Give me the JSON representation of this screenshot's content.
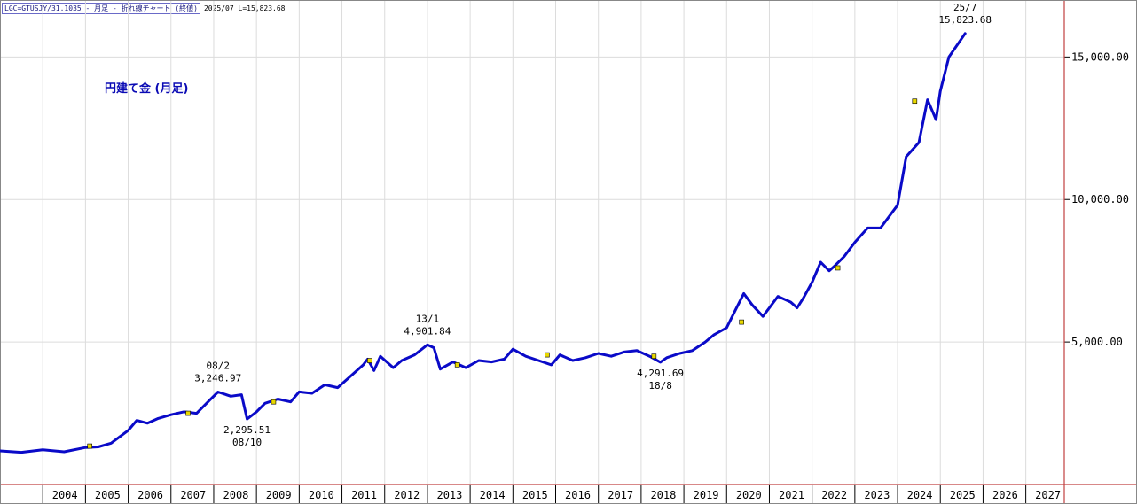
{
  "header": {
    "title": "LGC=GTUSJY/31.1035 - 月足 - 折れ線チャート (終値)",
    "info": "2025/07 L=15,823.68"
  },
  "chart_data": {
    "type": "line",
    "title": "円建て金 (月足)",
    "xlabel": "",
    "ylabel": "",
    "xlim": [
      2003.0,
      2027.9
    ],
    "ylim": [
      0,
      17000
    ],
    "x_ticks": [
      "2004",
      "2005",
      "2006",
      "2007",
      "2008",
      "2009",
      "2010",
      "2011",
      "2012",
      "2013",
      "2014",
      "2015",
      "2016",
      "2017",
      "2018",
      "2019",
      "2020",
      "2021",
      "2022",
      "2023",
      "2024",
      "2025",
      "2026",
      "2027"
    ],
    "y_ticks": [
      {
        "value": 5000,
        "label": "5,000.00"
      },
      {
        "value": 10000,
        "label": "10,000.00"
      },
      {
        "value": 15000,
        "label": "15,000.00"
      }
    ],
    "grid": true,
    "colors": {
      "line": "#0a0ac8",
      "grid": "#dcdcdc",
      "axis": "#c04040",
      "marker": "#e8d800",
      "title": "#0a0ab4"
    },
    "series": [
      {
        "x": [
          2003.0,
          2003.5,
          2004.0,
          2004.5,
          2005.0,
          2005.3,
          2005.6,
          2006.0,
          2006.2,
          2006.45,
          2006.7,
          2007.0,
          2007.3,
          2007.6,
          2007.9,
          2008.1,
          2008.4,
          2008.65,
          2008.78,
          2009.0,
          2009.2,
          2009.5,
          2009.8,
          2010.0,
          2010.3,
          2010.6,
          2010.9,
          2011.2,
          2011.5,
          2011.6,
          2011.75,
          2011.9,
          2012.2,
          2012.4,
          2012.7,
          2013.0,
          2013.15,
          2013.3,
          2013.6,
          2013.9,
          2014.2,
          2014.5,
          2014.8,
          2015.0,
          2015.3,
          2015.6,
          2015.9,
          2016.1,
          2016.4,
          2016.7,
          2017.0,
          2017.3,
          2017.6,
          2017.9,
          2018.2,
          2018.45,
          2018.6,
          2018.9,
          2019.2,
          2019.5,
          2019.7,
          2020.0,
          2020.2,
          2020.4,
          2020.6,
          2020.85,
          2021.0,
          2021.2,
          2021.5,
          2021.65,
          2021.8,
          2022.0,
          2022.2,
          2022.4,
          2022.55,
          2022.75,
          2023.0,
          2023.3,
          2023.6,
          2023.8,
          2024.0,
          2024.2,
          2024.5,
          2024.7,
          2024.9,
          2025.0,
          2025.2,
          2025.58
        ],
        "y": [
          1180,
          1130,
          1220,
          1150,
          1300,
          1320,
          1450,
          1900,
          2250,
          2150,
          2320,
          2450,
          2550,
          2500,
          2950,
          3246.97,
          3100,
          3150,
          2295.51,
          2550,
          2850,
          3000,
          2900,
          3250,
          3200,
          3500,
          3400,
          3800,
          4200,
          4400,
          4000,
          4500,
          4100,
          4350,
          4550,
          4901.84,
          4800,
          4050,
          4300,
          4100,
          4350,
          4300,
          4400,
          4750,
          4500,
          4350,
          4200,
          4550,
          4350,
          4450,
          4600,
          4500,
          4650,
          4700,
          4500,
          4291.69,
          4450,
          4600,
          4700,
          5000,
          5250,
          5500,
          6100,
          6700,
          6300,
          5900,
          6200,
          6600,
          6400,
          6200,
          6550,
          7100,
          7800,
          7500,
          7700,
          8000,
          8500,
          9000,
          9000,
          9400,
          9800,
          11500,
          12000,
          13500,
          12800,
          13800,
          15000,
          15823.68
        ]
      }
    ],
    "annotations": [
      {
        "x": 2008.1,
        "y": 3246.97,
        "date": "08/2",
        "value": "3,246.97",
        "position": "above"
      },
      {
        "x": 2008.78,
        "y": 2295.51,
        "date": "08/10",
        "value": "2,295.51",
        "position": "below"
      },
      {
        "x": 2013.0,
        "y": 4901.84,
        "date": "13/1",
        "value": "4,901.84",
        "position": "above"
      },
      {
        "x": 2018.45,
        "y": 4291.69,
        "date": "18/8",
        "value": "4,291.69",
        "position": "below"
      },
      {
        "x": 2025.58,
        "y": 15823.68,
        "date": "25/7",
        "value": "15,823.68",
        "position": "above"
      }
    ],
    "markers": [
      {
        "x": 2005.1,
        "y": 1350
      },
      {
        "x": 2007.4,
        "y": 2500
      },
      {
        "x": 2009.4,
        "y": 2900
      },
      {
        "x": 2011.65,
        "y": 4350
      },
      {
        "x": 2013.7,
        "y": 4200
      },
      {
        "x": 2015.8,
        "y": 4550
      },
      {
        "x": 2018.3,
        "y": 4500
      },
      {
        "x": 2020.35,
        "y": 5700
      },
      {
        "x": 2022.6,
        "y": 7600
      },
      {
        "x": 2024.4,
        "y": 13450
      }
    ]
  }
}
